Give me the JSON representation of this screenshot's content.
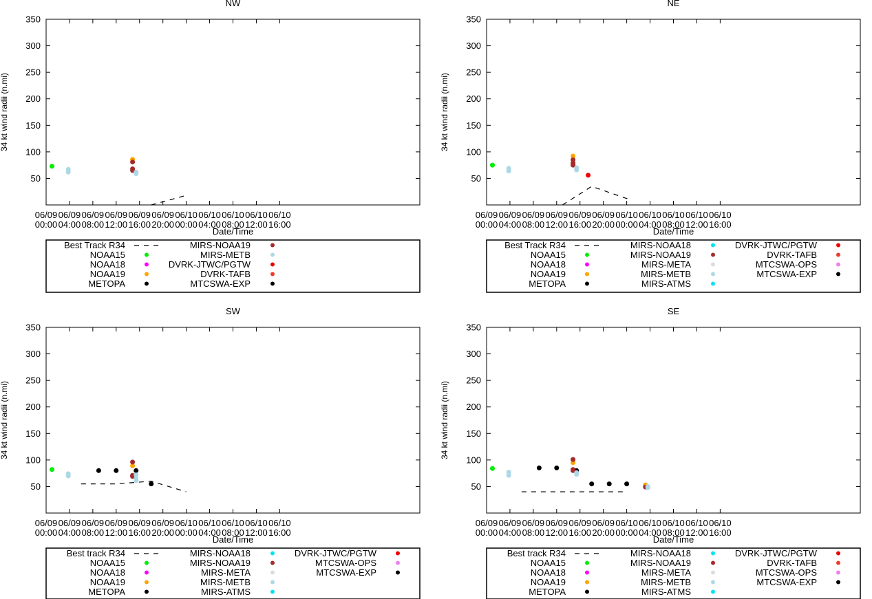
{
  "chart_data": [
    {
      "type": "scatter",
      "title": "NW",
      "xlabel": "Date/Time",
      "ylabel": "34 kt wind radii (n.mi)",
      "ylim": [
        0,
        350
      ],
      "yticks": [
        50,
        100,
        150,
        200,
        250,
        300,
        350
      ],
      "xlim_hours": [
        0,
        64
      ],
      "xticks": [
        {
          "hour": 0,
          "date": "06/09",
          "time": "00:00"
        },
        {
          "hour": 4,
          "date": "06/09",
          "time": "04:00"
        },
        {
          "hour": 8,
          "date": "06/09",
          "time": "08:00"
        },
        {
          "hour": 12,
          "date": "06/09",
          "time": "12:00"
        },
        {
          "hour": 16,
          "date": "06/09",
          "time": "16:00"
        },
        {
          "hour": 20,
          "date": "06/09",
          "time": "20:00"
        },
        {
          "hour": 24,
          "date": "06/10",
          "time": "00:00"
        },
        {
          "hour": 28,
          "date": "06/10",
          "time": "04:00"
        },
        {
          "hour": 32,
          "date": "06/10",
          "time": "08:00"
        },
        {
          "hour": 36,
          "date": "06/10",
          "time": "12:00"
        },
        {
          "hour": 40,
          "date": "06/10",
          "time": "16:00"
        }
      ],
      "best_track": {
        "name": "Best Track R34",
        "points": [
          [
            18,
            0
          ],
          [
            24,
            18
          ]
        ]
      },
      "series": [
        {
          "name": "NOAA15",
          "color": "#00ee00",
          "points": [
            [
              1.0,
              73
            ]
          ]
        },
        {
          "name": "NOAA18",
          "color": "#ff00ff",
          "points": []
        },
        {
          "name": "NOAA19",
          "color": "#ffa500",
          "points": [
            [
              14.8,
              86
            ]
          ]
        },
        {
          "name": "METOPA",
          "color": "#000000",
          "points": []
        },
        {
          "name": "MIRS-NOAA19",
          "color": "#a52a2a",
          "points": [
            [
              14.8,
              81
            ],
            [
              14.8,
              68
            ],
            [
              14.8,
              65
            ]
          ]
        },
        {
          "name": "MIRS-METB",
          "color": "#add8e6",
          "points": [
            [
              3.8,
              67
            ],
            [
              3.8,
              62
            ],
            [
              15.4,
              62
            ],
            [
              15.4,
              59
            ]
          ]
        },
        {
          "name": "DVRK-JTWC/PGTW",
          "color": "#ee0000",
          "points": []
        },
        {
          "name": "DVRK-TAFB",
          "color": "#ef3b2c",
          "points": []
        },
        {
          "name": "MTCSWA-EXP",
          "color": "#000000",
          "points": []
        }
      ]
    },
    {
      "type": "scatter",
      "title": "NE",
      "xlabel": "Date/Time",
      "ylabel": "34 kt wind radii (n.mi)",
      "ylim": [
        0,
        350
      ],
      "yticks": [
        50,
        100,
        150,
        200,
        250,
        300,
        350
      ],
      "xlim_hours": [
        0,
        64
      ],
      "xticks": [
        {
          "hour": 0,
          "date": "06/09",
          "time": "00:00"
        },
        {
          "hour": 4,
          "date": "06/09",
          "time": "04:00"
        },
        {
          "hour": 8,
          "date": "06/09",
          "time": "08:00"
        },
        {
          "hour": 12,
          "date": "06/09",
          "time": "12:00"
        },
        {
          "hour": 16,
          "date": "06/09",
          "time": "16:00"
        },
        {
          "hour": 20,
          "date": "06/09",
          "time": "20:00"
        },
        {
          "hour": 24,
          "date": "06/10",
          "time": "00:00"
        },
        {
          "hour": 28,
          "date": "06/10",
          "time": "04:00"
        },
        {
          "hour": 32,
          "date": "06/10",
          "time": "08:00"
        },
        {
          "hour": 36,
          "date": "06/10",
          "time": "12:00"
        },
        {
          "hour": 40,
          "date": "06/10",
          "time": "16:00"
        }
      ],
      "best_track": {
        "name": "Best Track R34",
        "points": [
          [
            13,
            0
          ],
          [
            18,
            35
          ],
          [
            24,
            12
          ],
          [
            24.5,
            12
          ]
        ]
      },
      "series": [
        {
          "name": "NOAA15",
          "color": "#00ee00",
          "points": [
            [
              1.0,
              75
            ]
          ]
        },
        {
          "name": "NOAA18",
          "color": "#ff00ff",
          "points": []
        },
        {
          "name": "NOAA19",
          "color": "#ffa500",
          "points": [
            [
              14.8,
              92
            ]
          ]
        },
        {
          "name": "METOPA",
          "color": "#000000",
          "points": []
        },
        {
          "name": "MIRS-NOAA18",
          "color": "#00e5ee",
          "points": []
        },
        {
          "name": "MIRS-NOAA19",
          "color": "#a52a2a",
          "points": [
            [
              14.8,
              85
            ],
            [
              14.8,
              79
            ],
            [
              14.8,
              75
            ]
          ]
        },
        {
          "name": "MIRS-META",
          "color": "#dcdcdc",
          "points": []
        },
        {
          "name": "MIRS-METB",
          "color": "#add8e6",
          "points": [
            [
              3.8,
              69
            ],
            [
              3.8,
              64
            ],
            [
              15.4,
              70
            ],
            [
              15.4,
              66
            ]
          ]
        },
        {
          "name": "MIRS-ATMS",
          "color": "#00e5ee",
          "points": []
        },
        {
          "name": "DVRK-JTWC/PGTW",
          "color": "#ee0000",
          "points": [
            [
              17.4,
              56
            ]
          ]
        },
        {
          "name": "DVRK-TAFB",
          "color": "#ef3b2c",
          "points": []
        },
        {
          "name": "MTCSWA-OPS",
          "color": "#ee82ee",
          "points": []
        },
        {
          "name": "MTCSWA-EXP",
          "color": "#000000",
          "points": []
        }
      ]
    },
    {
      "type": "scatter",
      "title": "SW",
      "xlabel": "Date/Time",
      "ylabel": "34 kt wind radii (n.mi)",
      "ylim": [
        0,
        350
      ],
      "yticks": [
        50,
        100,
        150,
        200,
        250,
        300,
        350
      ],
      "xlim_hours": [
        0,
        64
      ],
      "xticks": [
        {
          "hour": 0,
          "date": "06/09",
          "time": "00:00"
        },
        {
          "hour": 4,
          "date": "06/09",
          "time": "04:00"
        },
        {
          "hour": 8,
          "date": "06/09",
          "time": "08:00"
        },
        {
          "hour": 12,
          "date": "06/09",
          "time": "12:00"
        },
        {
          "hour": 16,
          "date": "06/09",
          "time": "16:00"
        },
        {
          "hour": 20,
          "date": "06/09",
          "time": "20:00"
        },
        {
          "hour": 24,
          "date": "06/10",
          "time": "00:00"
        },
        {
          "hour": 28,
          "date": "06/10",
          "time": "04:00"
        },
        {
          "hour": 32,
          "date": "06/10",
          "time": "08:00"
        },
        {
          "hour": 36,
          "date": "06/10",
          "time": "12:00"
        },
        {
          "hour": 40,
          "date": "06/10",
          "time": "16:00"
        }
      ],
      "best_track": {
        "name": "Best track R34",
        "points": [
          [
            6,
            55
          ],
          [
            12,
            55
          ],
          [
            18,
            60
          ],
          [
            24,
            40
          ]
        ]
      },
      "series": [
        {
          "name": "NOAA15",
          "color": "#00ee00",
          "points": [
            [
              1.0,
              82
            ]
          ]
        },
        {
          "name": "NOAA18",
          "color": "#ff00ff",
          "points": []
        },
        {
          "name": "NOAA19",
          "color": "#ffa500",
          "points": [
            [
              14.8,
              89
            ]
          ]
        },
        {
          "name": "METOPA",
          "color": "#000000",
          "points": [
            [
              9.0,
              80
            ],
            [
              12.0,
              80
            ],
            [
              15.4,
              80
            ],
            [
              18.0,
              55
            ]
          ]
        },
        {
          "name": "MIRS-NOAA18",
          "color": "#00e5ee",
          "points": []
        },
        {
          "name": "MIRS-NOAA19",
          "color": "#a52a2a",
          "points": [
            [
              14.8,
              96
            ],
            [
              14.8,
              71
            ],
            [
              14.8,
              69
            ]
          ]
        },
        {
          "name": "MIRS-META",
          "color": "#dcdcdc",
          "points": []
        },
        {
          "name": "MIRS-METB",
          "color": "#add8e6",
          "points": [
            [
              3.8,
              74
            ],
            [
              3.8,
              70
            ],
            [
              15.4,
              72
            ],
            [
              15.4,
              65
            ],
            [
              15.4,
              61
            ]
          ]
        },
        {
          "name": "MIRS-ATMS",
          "color": "#00e5ee",
          "points": []
        },
        {
          "name": "DVRK-JTWC/PGTW",
          "color": "#ee0000",
          "points": []
        },
        {
          "name": "MTCSWA-OPS",
          "color": "#ee82ee",
          "points": []
        },
        {
          "name": "MTCSWA-EXP",
          "color": "#000000",
          "points": []
        }
      ]
    },
    {
      "type": "scatter",
      "title": "SE",
      "xlabel": "Date/Time",
      "ylabel": "34 kt wind radii (n.mi)",
      "ylim": [
        0,
        350
      ],
      "yticks": [
        50,
        100,
        150,
        200,
        250,
        300,
        350
      ],
      "xlim_hours": [
        0,
        64
      ],
      "xticks": [
        {
          "hour": 0,
          "date": "06/09",
          "time": "00:00"
        },
        {
          "hour": 4,
          "date": "06/09",
          "time": "04:00"
        },
        {
          "hour": 8,
          "date": "06/09",
          "time": "08:00"
        },
        {
          "hour": 12,
          "date": "06/09",
          "time": "12:00"
        },
        {
          "hour": 16,
          "date": "06/09",
          "time": "16:00"
        },
        {
          "hour": 20,
          "date": "06/09",
          "time": "20:00"
        },
        {
          "hour": 24,
          "date": "06/10",
          "time": "00:00"
        },
        {
          "hour": 28,
          "date": "06/10",
          "time": "04:00"
        },
        {
          "hour": 32,
          "date": "06/10",
          "time": "08:00"
        },
        {
          "hour": 36,
          "date": "06/10",
          "time": "12:00"
        },
        {
          "hour": 40,
          "date": "06/10",
          "time": "16:00"
        }
      ],
      "best_track": {
        "name": "Best track R34",
        "points": [
          [
            6,
            40
          ],
          [
            24,
            40
          ]
        ]
      },
      "series": [
        {
          "name": "NOAA15",
          "color": "#00ee00",
          "points": [
            [
              1.0,
              84
            ]
          ]
        },
        {
          "name": "NOAA18",
          "color": "#ff00ff",
          "points": []
        },
        {
          "name": "NOAA19",
          "color": "#ffa500",
          "points": [
            [
              14.8,
              95
            ],
            [
              27.2,
              53
            ]
          ]
        },
        {
          "name": "METOPA",
          "color": "#000000",
          "points": [
            [
              9.0,
              85
            ],
            [
              12.0,
              85
            ],
            [
              15.4,
              80
            ],
            [
              18.0,
              55
            ],
            [
              21.0,
              55
            ],
            [
              24.0,
              55
            ]
          ]
        },
        {
          "name": "MIRS-NOAA18",
          "color": "#00e5ee",
          "points": []
        },
        {
          "name": "MIRS-NOAA19",
          "color": "#a52a2a",
          "points": [
            [
              14.8,
              101
            ],
            [
              14.8,
              82
            ],
            [
              14.8,
              80
            ],
            [
              27.2,
              49
            ]
          ]
        },
        {
          "name": "MIRS-META",
          "color": "#dcdcdc",
          "points": []
        },
        {
          "name": "MIRS-METB",
          "color": "#add8e6",
          "points": [
            [
              3.8,
              77
            ],
            [
              3.8,
              71
            ],
            [
              15.4,
              76
            ],
            [
              15.4,
              73
            ],
            [
              27.6,
              50
            ],
            [
              27.6,
              48
            ]
          ]
        },
        {
          "name": "MIRS-ATMS",
          "color": "#00e5ee",
          "points": []
        },
        {
          "name": "DVRK-JTWC/PGTW",
          "color": "#ee0000",
          "points": []
        },
        {
          "name": "DVRK-TAFB",
          "color": "#ef3b2c",
          "points": []
        },
        {
          "name": "MTCSWA-OPS",
          "color": "#ee82ee",
          "points": []
        },
        {
          "name": "MTCSWA-EXP",
          "color": "#000000",
          "points": []
        }
      ]
    }
  ]
}
